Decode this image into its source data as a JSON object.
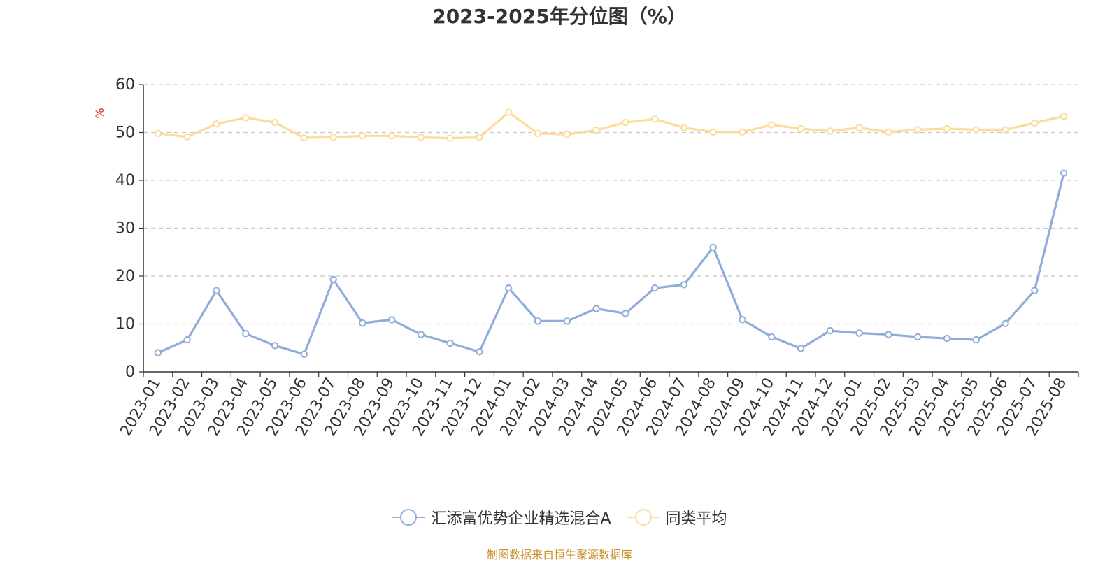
{
  "title": "2023-2025年分位图（%）",
  "source_note": "制图数据来自恒生聚源数据库",
  "chart_data": {
    "type": "line",
    "title": "2023-2025年分位图（%）",
    "ylabel": "%",
    "xlabel": "",
    "ylim": [
      0,
      60
    ],
    "yticks": [
      0,
      10,
      20,
      30,
      40,
      50,
      60
    ],
    "grid": true,
    "legend_position": "bottom-center",
    "categories": [
      "2023-01",
      "2023-02",
      "2023-03",
      "2023-04",
      "2023-05",
      "2023-06",
      "2023-07",
      "2023-08",
      "2023-09",
      "2023-10",
      "2023-11",
      "2023-12",
      "2024-01",
      "2024-02",
      "2024-03",
      "2024-04",
      "2024-05",
      "2024-06",
      "2024-07",
      "2024-08",
      "2024-09",
      "2024-10",
      "2024-11",
      "2024-12",
      "2025-01",
      "2025-02",
      "2025-03",
      "2025-04",
      "2025-05",
      "2025-06",
      "2025-07",
      "2025-08"
    ],
    "series": [
      {
        "name": "汇添富优势企业精选混合A",
        "color": "#8fadd9",
        "values": [
          4.0,
          6.7,
          17.0,
          8.0,
          5.5,
          3.7,
          19.3,
          10.2,
          10.9,
          7.8,
          6.0,
          4.2,
          17.5,
          10.6,
          10.6,
          13.2,
          12.2,
          17.5,
          18.2,
          26.0,
          10.9,
          7.3,
          4.9,
          8.6,
          8.1,
          7.8,
          7.3,
          7.0,
          6.7,
          10.1,
          17.0,
          41.5
        ]
      },
      {
        "name": "同类平均",
        "color": "#fddc9b",
        "values": [
          49.8,
          49.1,
          51.8,
          53.1,
          52.1,
          48.9,
          49.0,
          49.3,
          49.3,
          49.0,
          48.8,
          49.0,
          54.2,
          49.8,
          49.6,
          50.5,
          52.1,
          52.8,
          51.0,
          50.1,
          50.1,
          51.6,
          50.8,
          50.3,
          51.0,
          50.1,
          50.6,
          50.8,
          50.6,
          50.6,
          52.0,
          53.4
        ]
      }
    ]
  }
}
